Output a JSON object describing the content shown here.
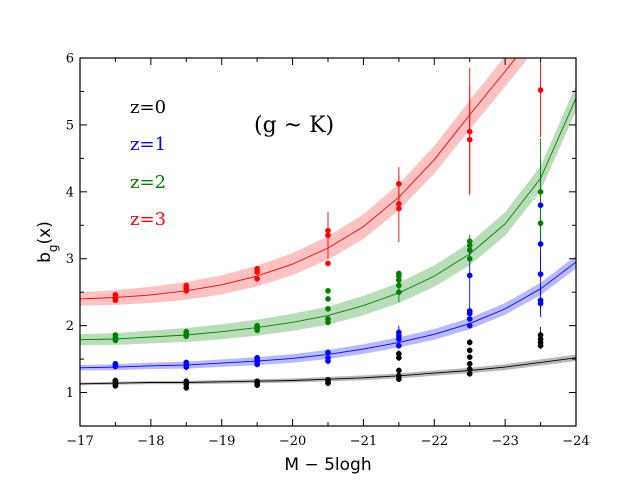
{
  "chart_data": {
    "type": "scatter",
    "title": "",
    "annotation": "(g ~ K)",
    "xlabel": "M − 5logh",
    "ylabel": "b_g(x)",
    "xlim": [
      -17,
      -24
    ],
    "ylim": [
      0.5,
      6
    ],
    "xticks": [
      -17,
      -18,
      -19,
      -20,
      -21,
      -22,
      -23,
      -24
    ],
    "xtick_labels": [
      "−17",
      "−18",
      "−19",
      "−20",
      "−21",
      "−22",
      "−23",
      "−24"
    ],
    "yticks": [
      1,
      2,
      3,
      4,
      5,
      6
    ],
    "ytick_labels": [
      "1",
      "2",
      "3",
      "4",
      "5",
      "6"
    ],
    "grid": false,
    "legend_position": "top-left",
    "series": [
      {
        "name": "z=0",
        "color": "#000000",
        "band_color": "#808080",
        "curve": {
          "x": [
            -17,
            -17.5,
            -18,
            -18.5,
            -19,
            -19.5,
            -20,
            -20.5,
            -21,
            -21.5,
            -22,
            -22.5,
            -23,
            -23.5,
            -24
          ],
          "y": [
            1.13,
            1.14,
            1.15,
            1.15,
            1.16,
            1.17,
            1.18,
            1.2,
            1.22,
            1.25,
            1.29,
            1.33,
            1.38,
            1.45,
            1.52
          ],
          "band": 0.02
        },
        "points": [
          {
            "x": -17.5,
            "y": 1.1,
            "err": 0
          },
          {
            "x": -17.5,
            "y": 1.13,
            "err": 0
          },
          {
            "x": -17.5,
            "y": 1.16,
            "err": 0
          },
          {
            "x": -17.5,
            "y": 1.18,
            "err": 0
          },
          {
            "x": -18.5,
            "y": 1.07,
            "err": 0
          },
          {
            "x": -18.5,
            "y": 1.12,
            "err": 0
          },
          {
            "x": -18.5,
            "y": 1.15,
            "err": 0
          },
          {
            "x": -18.5,
            "y": 1.17,
            "err": 0
          },
          {
            "x": -19.5,
            "y": 1.11,
            "err": 0
          },
          {
            "x": -19.5,
            "y": 1.14,
            "err": 0
          },
          {
            "x": -19.5,
            "y": 1.17,
            "err": 0
          },
          {
            "x": -20.5,
            "y": 1.14,
            "err": 0
          },
          {
            "x": -20.5,
            "y": 1.17,
            "err": 0
          },
          {
            "x": -20.5,
            "y": 1.19,
            "err": 0
          },
          {
            "x": -21.5,
            "y": 1.2,
            "err": 0
          },
          {
            "x": -21.5,
            "y": 1.25,
            "err": 0
          },
          {
            "x": -21.5,
            "y": 1.33,
            "err": 0
          },
          {
            "x": -21.5,
            "y": 1.52,
            "err": 0.05
          },
          {
            "x": -21.5,
            "y": 1.58,
            "err": 0.05
          },
          {
            "x": -22.5,
            "y": 1.28,
            "err": 0
          },
          {
            "x": -22.5,
            "y": 1.35,
            "err": 0
          },
          {
            "x": -22.5,
            "y": 1.43,
            "err": 0
          },
          {
            "x": -22.5,
            "y": 1.53,
            "err": 0
          },
          {
            "x": -22.5,
            "y": 1.63,
            "err": 0
          },
          {
            "x": -22.5,
            "y": 1.75,
            "err": 0.05
          },
          {
            "x": -23.5,
            "y": 1.7,
            "err": 0.05
          },
          {
            "x": -23.5,
            "y": 1.75,
            "err": 0.08
          },
          {
            "x": -23.5,
            "y": 1.8,
            "err": 0.1
          },
          {
            "x": -23.5,
            "y": 1.86,
            "err": 0.12
          }
        ]
      },
      {
        "name": "z=1",
        "color": "#0000ff",
        "band_color": "#8080ff",
        "curve": {
          "x": [
            -17,
            -17.5,
            -18,
            -18.5,
            -19,
            -19.5,
            -20,
            -20.5,
            -21,
            -21.5,
            -22,
            -22.5,
            -23,
            -23.5,
            -24
          ],
          "y": [
            1.37,
            1.38,
            1.4,
            1.41,
            1.44,
            1.47,
            1.51,
            1.57,
            1.65,
            1.75,
            1.87,
            2.03,
            2.25,
            2.55,
            2.95
          ],
          "band": 0.04
        },
        "points": [
          {
            "x": -17.5,
            "y": 1.39,
            "err": 0
          },
          {
            "x": -17.5,
            "y": 1.41,
            "err": 0
          },
          {
            "x": -17.5,
            "y": 1.43,
            "err": 0
          },
          {
            "x": -18.5,
            "y": 1.38,
            "err": 0
          },
          {
            "x": -18.5,
            "y": 1.42,
            "err": 0
          },
          {
            "x": -18.5,
            "y": 1.45,
            "err": 0
          },
          {
            "x": -19.5,
            "y": 1.42,
            "err": 0
          },
          {
            "x": -19.5,
            "y": 1.46,
            "err": 0
          },
          {
            "x": -19.5,
            "y": 1.49,
            "err": 0
          },
          {
            "x": -19.5,
            "y": 1.52,
            "err": 0
          },
          {
            "x": -20.5,
            "y": 1.47,
            "err": 0
          },
          {
            "x": -20.5,
            "y": 1.52,
            "err": 0
          },
          {
            "x": -20.5,
            "y": 1.6,
            "err": 0
          },
          {
            "x": -21.5,
            "y": 1.7,
            "err": 0
          },
          {
            "x": -21.5,
            "y": 1.8,
            "err": 0
          },
          {
            "x": -21.5,
            "y": 1.85,
            "err": 0.1
          },
          {
            "x": -21.5,
            "y": 1.9,
            "err": 0.1
          },
          {
            "x": -22.5,
            "y": 2.0,
            "err": 0
          },
          {
            "x": -22.5,
            "y": 2.1,
            "err": 0
          },
          {
            "x": -22.5,
            "y": 2.18,
            "err": 0
          },
          {
            "x": -22.5,
            "y": 2.22,
            "err": 0
          },
          {
            "x": -22.5,
            "y": 2.75,
            "err": 0.5
          },
          {
            "x": -23.5,
            "y": 2.33,
            "err": 0.2
          },
          {
            "x": -23.5,
            "y": 2.38,
            "err": 0.2
          },
          {
            "x": -23.5,
            "y": 2.77,
            "err": 0.3
          },
          {
            "x": -23.5,
            "y": 3.22,
            "err": 0.5
          },
          {
            "x": -23.5,
            "y": 3.8,
            "err": 0.7
          }
        ]
      },
      {
        "name": "z=2",
        "color": "#008000",
        "band_color": "#80c080",
        "curve": {
          "x": [
            -17,
            -17.5,
            -18,
            -18.5,
            -19,
            -19.5,
            -20,
            -20.5,
            -21,
            -21.5,
            -22,
            -22.5,
            -23,
            -23.5,
            -24
          ],
          "y": [
            1.79,
            1.8,
            1.83,
            1.86,
            1.91,
            1.97,
            2.05,
            2.15,
            2.3,
            2.49,
            2.74,
            3.07,
            3.52,
            4.2,
            5.4
          ],
          "band": 0.08
        },
        "points": [
          {
            "x": -17.5,
            "y": 1.78,
            "err": 0
          },
          {
            "x": -17.5,
            "y": 1.82,
            "err": 0
          },
          {
            "x": -17.5,
            "y": 1.86,
            "err": 0
          },
          {
            "x": -18.5,
            "y": 1.84,
            "err": 0
          },
          {
            "x": -18.5,
            "y": 1.88,
            "err": 0
          },
          {
            "x": -18.5,
            "y": 1.91,
            "err": 0
          },
          {
            "x": -19.5,
            "y": 1.93,
            "err": 0
          },
          {
            "x": -19.5,
            "y": 1.96,
            "err": 0
          },
          {
            "x": -19.5,
            "y": 2.0,
            "err": 0
          },
          {
            "x": -20.5,
            "y": 2.05,
            "err": 0
          },
          {
            "x": -20.5,
            "y": 2.1,
            "err": 0
          },
          {
            "x": -20.5,
            "y": 2.25,
            "err": 0
          },
          {
            "x": -20.5,
            "y": 2.4,
            "err": 0
          },
          {
            "x": -20.5,
            "y": 2.52,
            "err": 0
          },
          {
            "x": -21.5,
            "y": 2.5,
            "err": 0.15
          },
          {
            "x": -21.5,
            "y": 2.6,
            "err": 0
          },
          {
            "x": -21.5,
            "y": 2.68,
            "err": 0
          },
          {
            "x": -21.5,
            "y": 2.74,
            "err": 0
          },
          {
            "x": -21.5,
            "y": 2.78,
            "err": 0
          },
          {
            "x": -22.5,
            "y": 3.0,
            "err": 0
          },
          {
            "x": -22.5,
            "y": 3.13,
            "err": 0
          },
          {
            "x": -22.5,
            "y": 3.2,
            "err": 0
          },
          {
            "x": -22.5,
            "y": 3.26,
            "err": 0.1
          },
          {
            "x": -23.5,
            "y": 3.53,
            "err": 0.4
          },
          {
            "x": -23.5,
            "y": 4.0,
            "err": 0.8
          }
        ]
      },
      {
        "name": "z=3",
        "color": "#ff0000",
        "band_color": "#ff9090",
        "curve": {
          "x": [
            -17,
            -17.5,
            -18,
            -18.5,
            -19,
            -19.5,
            -20,
            -20.5,
            -21,
            -21.5,
            -22,
            -22.5,
            -23,
            -23.3
          ],
          "y": [
            2.4,
            2.42,
            2.46,
            2.52,
            2.61,
            2.74,
            2.92,
            3.16,
            3.48,
            3.92,
            4.48,
            5.15,
            5.8,
            6.2
          ],
          "band": 0.1
        },
        "points": [
          {
            "x": -17.5,
            "y": 2.38,
            "err": 0
          },
          {
            "x": -17.5,
            "y": 2.42,
            "err": 0
          },
          {
            "x": -17.5,
            "y": 2.46,
            "err": 0
          },
          {
            "x": -18.5,
            "y": 2.52,
            "err": 0
          },
          {
            "x": -18.5,
            "y": 2.56,
            "err": 0
          },
          {
            "x": -18.5,
            "y": 2.6,
            "err": 0
          },
          {
            "x": -19.5,
            "y": 2.7,
            "err": 0
          },
          {
            "x": -19.5,
            "y": 2.8,
            "err": 0
          },
          {
            "x": -19.5,
            "y": 2.85,
            "err": 0
          },
          {
            "x": -20.5,
            "y": 2.93,
            "err": 0
          },
          {
            "x": -20.5,
            "y": 3.35,
            "err": 0.35
          },
          {
            "x": -20.5,
            "y": 3.42,
            "err": 0
          },
          {
            "x": -21.5,
            "y": 3.75,
            "err": 0.5
          },
          {
            "x": -21.5,
            "y": 3.82,
            "err": 0
          },
          {
            "x": -21.5,
            "y": 4.12,
            "err": 0.25
          },
          {
            "x": -22.5,
            "y": 4.78,
            "err": 0.8
          },
          {
            "x": -22.5,
            "y": 4.9,
            "err": 0.95
          },
          {
            "x": -23.5,
            "y": 5.52,
            "err": 0.7
          }
        ]
      }
    ]
  }
}
